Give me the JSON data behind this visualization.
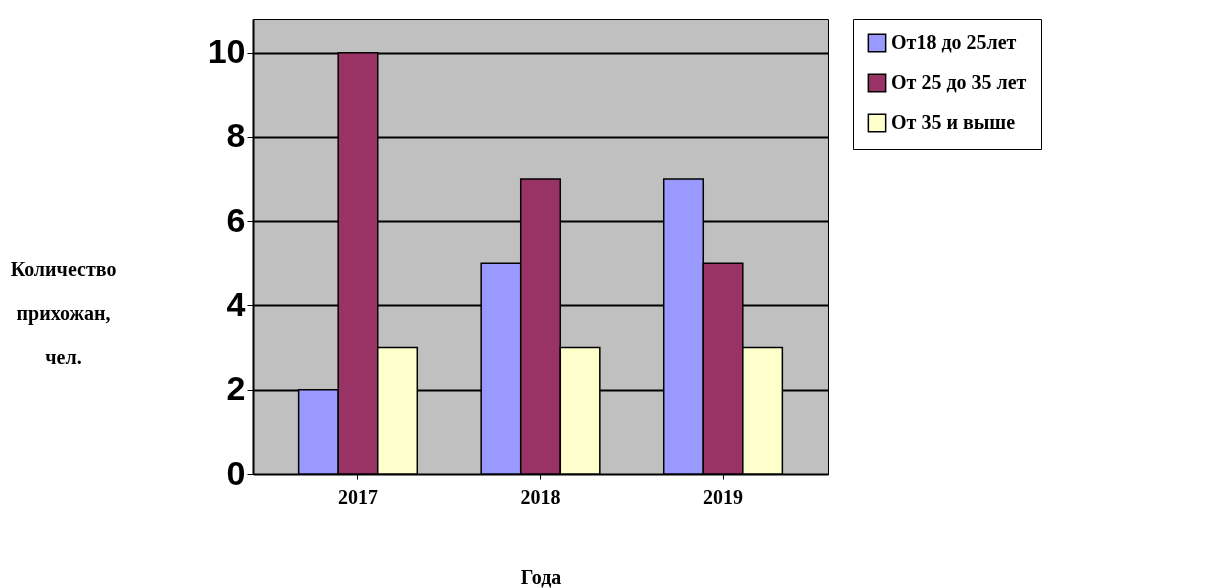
{
  "chart_data": {
    "type": "bar",
    "xlabel": "Года",
    "ylabel": "Количество прихожан, чел.",
    "categories": [
      "2017",
      "2018",
      "2019"
    ],
    "series": [
      {
        "name": "От18 до 25лет",
        "color": "#9999ff",
        "values": [
          2,
          5,
          7
        ]
      },
      {
        "name": "От 25 до 35 лет",
        "color": "#993366",
        "values": [
          10,
          7,
          5
        ]
      },
      {
        "name": "От 35 и выше",
        "color": "#ffffcc",
        "values": [
          3,
          3,
          3
        ]
      }
    ],
    "ylim": [
      0,
      10.8
    ],
    "yticks": [
      0,
      2,
      4,
      6,
      8,
      10
    ],
    "grid": "y",
    "legend": "right"
  }
}
